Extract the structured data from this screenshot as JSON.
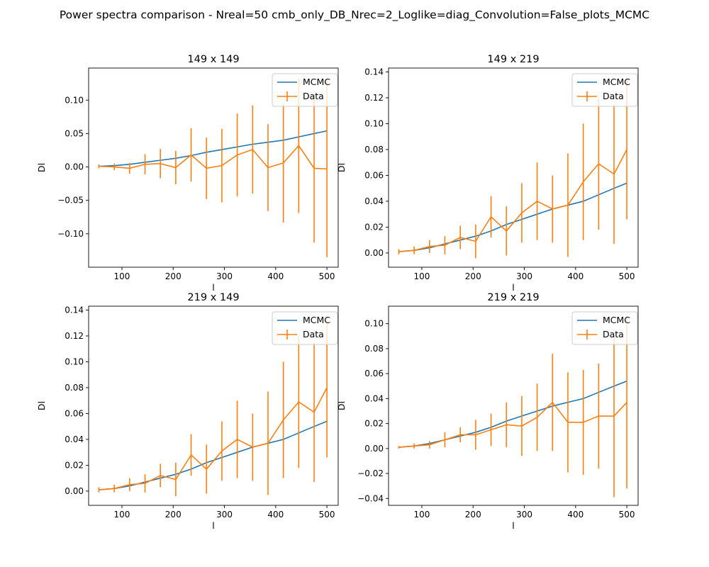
{
  "suptitle": "Power spectra comparison - Nreal=50 cmb_only_DB_Nrec=2_Loglike=diag_Convolution=False_plots_MCMC",
  "colors": {
    "mcmc": "#1f77b4",
    "data": "#ff7f0e",
    "axis": "#000000"
  },
  "chart_data": [
    {
      "type": "line",
      "title": "149 x 149",
      "xlabel": "l",
      "ylabel": "Dl",
      "xlim": [
        35,
        522
      ],
      "ylim": [
        -0.15,
        0.148
      ],
      "xticks": [
        100,
        200,
        300,
        400,
        500
      ],
      "yticks": [
        -0.1,
        -0.05,
        0.0,
        0.05,
        0.1
      ],
      "ytick_labels": [
        "−0.10",
        "−0.05",
        "0.00",
        "0.05",
        "0.10"
      ],
      "legend": {
        "placement": "upper-right",
        "entries": [
          "MCMC",
          "Data"
        ]
      },
      "x": [
        55,
        85,
        115,
        145,
        175,
        205,
        235,
        265,
        295,
        325,
        355,
        385,
        415,
        445,
        475,
        500
      ],
      "series": [
        {
          "name": "MCMC",
          "values": [
            0.001,
            0.002,
            0.004,
            0.007,
            0.01,
            0.013,
            0.017,
            0.022,
            0.026,
            0.03,
            0.034,
            0.037,
            0.04,
            0.045,
            0.05,
            0.054
          ]
        },
        {
          "name": "Data",
          "values": [
            0.001,
            0.0,
            -0.002,
            0.004,
            0.005,
            -0.001,
            0.018,
            -0.002,
            0.002,
            0.018,
            0.026,
            -0.001,
            0.006,
            0.032,
            -0.002,
            -0.003
          ],
          "errors": [
            0.003,
            0.005,
            0.008,
            0.015,
            0.022,
            0.025,
            0.04,
            0.046,
            0.055,
            0.062,
            0.066,
            0.065,
            0.089,
            0.101,
            0.111,
            0.132
          ]
        }
      ]
    },
    {
      "type": "line",
      "title": "149 x 219",
      "xlabel": "l",
      "ylabel": "Dl",
      "xlim": [
        35,
        522
      ],
      "ylim": [
        -0.011,
        0.143
      ],
      "xticks": [
        100,
        200,
        300,
        400,
        500
      ],
      "yticks": [
        0.0,
        0.02,
        0.04,
        0.06,
        0.08,
        0.1,
        0.12,
        0.14
      ],
      "ytick_labels": [
        "0.00",
        "0.02",
        "0.04",
        "0.06",
        "0.08",
        "0.10",
        "0.12",
        "0.14"
      ],
      "legend": {
        "placement": "upper-right",
        "entries": [
          "MCMC",
          "Data"
        ]
      },
      "x": [
        55,
        85,
        115,
        145,
        175,
        205,
        235,
        265,
        295,
        325,
        355,
        385,
        415,
        445,
        475,
        500
      ],
      "series": [
        {
          "name": "MCMC",
          "values": [
            0.001,
            0.002,
            0.004,
            0.007,
            0.01,
            0.013,
            0.017,
            0.022,
            0.026,
            0.03,
            0.034,
            0.037,
            0.04,
            0.045,
            0.05,
            0.054
          ]
        },
        {
          "name": "Data",
          "values": [
            0.001,
            0.002,
            0.005,
            0.006,
            0.012,
            0.009,
            0.028,
            0.017,
            0.031,
            0.04,
            0.034,
            0.037,
            0.055,
            0.069,
            0.061,
            0.08
          ],
          "errors": [
            0.002,
            0.003,
            0.005,
            0.007,
            0.009,
            0.013,
            0.016,
            0.019,
            0.023,
            0.03,
            0.026,
            0.04,
            0.045,
            0.051,
            0.054,
            0.054
          ]
        }
      ]
    },
    {
      "type": "line",
      "title": "219 x 149",
      "xlabel": "l",
      "ylabel": "Dl",
      "xlim": [
        35,
        522
      ],
      "ylim": [
        -0.011,
        0.143
      ],
      "xticks": [
        100,
        200,
        300,
        400,
        500
      ],
      "yticks": [
        0.0,
        0.02,
        0.04,
        0.06,
        0.08,
        0.1,
        0.12,
        0.14
      ],
      "ytick_labels": [
        "0.00",
        "0.02",
        "0.04",
        "0.06",
        "0.08",
        "0.10",
        "0.12",
        "0.14"
      ],
      "legend": {
        "placement": "upper-right",
        "entries": [
          "MCMC",
          "Data"
        ]
      },
      "x": [
        55,
        85,
        115,
        145,
        175,
        205,
        235,
        265,
        295,
        325,
        355,
        385,
        415,
        445,
        475,
        500
      ],
      "series": [
        {
          "name": "MCMC",
          "values": [
            0.001,
            0.002,
            0.004,
            0.007,
            0.01,
            0.013,
            0.017,
            0.022,
            0.026,
            0.03,
            0.034,
            0.037,
            0.04,
            0.045,
            0.05,
            0.054
          ]
        },
        {
          "name": "Data",
          "values": [
            0.001,
            0.002,
            0.005,
            0.006,
            0.012,
            0.009,
            0.028,
            0.017,
            0.031,
            0.04,
            0.034,
            0.037,
            0.055,
            0.069,
            0.061,
            0.08
          ],
          "errors": [
            0.002,
            0.003,
            0.005,
            0.007,
            0.009,
            0.013,
            0.016,
            0.019,
            0.023,
            0.03,
            0.026,
            0.04,
            0.045,
            0.051,
            0.054,
            0.054
          ]
        }
      ]
    },
    {
      "type": "line",
      "title": "219 x 219",
      "xlabel": "l",
      "ylabel": "Dl",
      "xlim": [
        35,
        522
      ],
      "ylim": [
        -0.0455,
        0.114
      ],
      "xticks": [
        100,
        200,
        300,
        400,
        500
      ],
      "yticks": [
        -0.04,
        -0.02,
        0.0,
        0.02,
        0.04,
        0.06,
        0.08,
        0.1
      ],
      "ytick_labels": [
        "−0.04",
        "−0.02",
        "0.00",
        "0.02",
        "0.04",
        "0.06",
        "0.08",
        "0.10"
      ],
      "legend": {
        "placement": "upper-right",
        "entries": [
          "MCMC",
          "Data"
        ]
      },
      "x": [
        55,
        85,
        115,
        145,
        175,
        205,
        235,
        265,
        295,
        325,
        355,
        385,
        415,
        445,
        475,
        500
      ],
      "series": [
        {
          "name": "MCMC",
          "values": [
            0.001,
            0.002,
            0.004,
            0.007,
            0.01,
            0.013,
            0.017,
            0.022,
            0.026,
            0.03,
            0.034,
            0.037,
            0.04,
            0.045,
            0.05,
            0.054
          ]
        },
        {
          "name": "Data",
          "values": [
            0.001,
            0.002,
            0.003,
            0.007,
            0.011,
            0.011,
            0.015,
            0.019,
            0.018,
            0.025,
            0.037,
            0.021,
            0.021,
            0.026,
            0.026,
            0.037
          ],
          "errors": [
            0.001,
            0.002,
            0.003,
            0.006,
            0.006,
            0.012,
            0.013,
            0.018,
            0.024,
            0.027,
            0.039,
            0.04,
            0.042,
            0.042,
            0.065,
            0.069
          ]
        }
      ]
    }
  ]
}
